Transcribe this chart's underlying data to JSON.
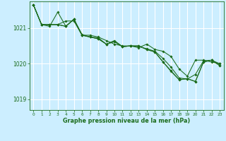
{
  "title": "Graphe pression niveau de la mer (hPa)",
  "background_color": "#cceeff",
  "grid_color": "#ffffff",
  "line_color": "#1a6b1a",
  "xlim": [
    -0.5,
    23.5
  ],
  "ylim": [
    1018.7,
    1021.75
  ],
  "yticks": [
    1019,
    1020,
    1021
  ],
  "xticks": [
    0,
    1,
    2,
    3,
    4,
    5,
    6,
    7,
    8,
    9,
    10,
    11,
    12,
    13,
    14,
    15,
    16,
    17,
    18,
    19,
    20,
    21,
    22,
    23
  ],
  "series": [
    [
      1021.65,
      1021.1,
      1021.1,
      1021.1,
      1021.2,
      1021.2,
      1020.8,
      1020.8,
      1020.75,
      1020.65,
      1020.55,
      1020.5,
      1020.5,
      1020.45,
      1020.55,
      1020.4,
      1020.35,
      1020.2,
      1019.85,
      1019.65,
      1020.1,
      1020.1,
      1020.05,
      1020.0
    ],
    [
      1021.65,
      1021.1,
      1021.05,
      1021.45,
      1021.05,
      1021.25,
      1020.8,
      1020.75,
      1020.73,
      1020.55,
      1020.65,
      1020.48,
      1020.5,
      1020.48,
      1020.42,
      1020.35,
      1020.15,
      1019.9,
      1019.6,
      1019.57,
      1019.7,
      1020.08,
      1020.1,
      1020.0
    ],
    [
      1021.65,
      1021.1,
      1021.1,
      1021.1,
      1021.05,
      1021.25,
      1020.8,
      1020.75,
      1020.7,
      1020.55,
      1020.62,
      1020.48,
      1020.5,
      1020.5,
      1020.4,
      1020.33,
      1020.05,
      1019.8,
      1019.55,
      1019.58,
      1019.5,
      1020.05,
      1020.1,
      1019.95
    ],
    [
      1021.65,
      1021.1,
      1021.1,
      1021.1,
      1021.05,
      1021.25,
      1020.82,
      1020.75,
      1020.7,
      1020.55,
      1020.62,
      1020.48,
      1020.5,
      1020.5,
      1020.4,
      1020.33,
      1020.05,
      1019.78,
      1019.55,
      1019.58,
      1019.5,
      1020.05,
      1020.1,
      1019.95
    ]
  ]
}
